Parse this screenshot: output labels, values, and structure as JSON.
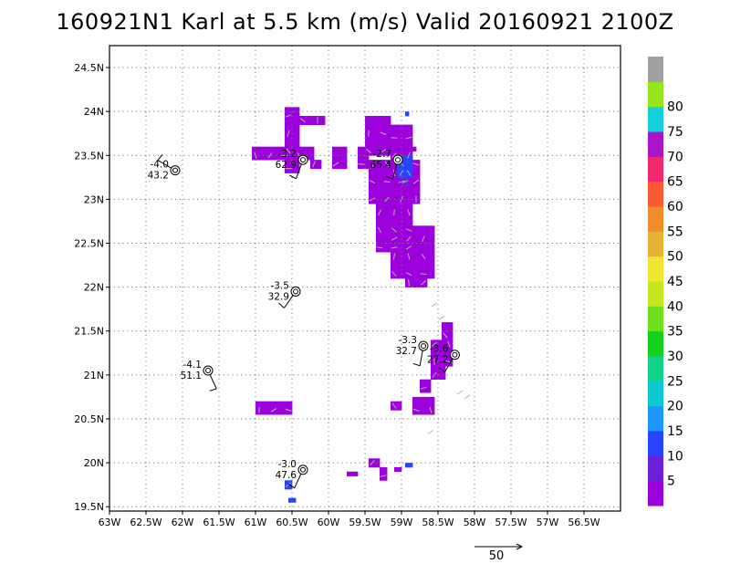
{
  "title": "160921N1 Karl at 5.5 km (m/s) Valid 20160921 2100Z",
  "map": {
    "lon_ticks": [
      "63W",
      "62.5W",
      "62W",
      "61.5W",
      "61W",
      "60.5W",
      "60W",
      "59.5W",
      "59W",
      "58.5W",
      "58W",
      "57.5W",
      "57W",
      "56.5W"
    ],
    "lat_ticks": [
      "24.5N",
      "24N",
      "23.5N",
      "23N",
      "22.5N",
      "22N",
      "21.5N",
      "21N",
      "20.5N",
      "20N",
      "19.5N"
    ],
    "lon_range": [
      -63,
      -56
    ],
    "lat_range": [
      19.45,
      24.75
    ],
    "grid": "dotted",
    "land_color": "#ffffff"
  },
  "colorbar": {
    "labels": [
      "5",
      "10",
      "15",
      "20",
      "25",
      "30",
      "35",
      "40",
      "45",
      "50",
      "55",
      "60",
      "65",
      "70",
      "75",
      "80"
    ],
    "colors": [
      "#9c00dc",
      "#6a1fd8",
      "#2745ff",
      "#1e96ff",
      "#10c8d0",
      "#14d28c",
      "#12d21e",
      "#6ee01c",
      "#c8e61e",
      "#f0e632",
      "#e6b432",
      "#f08c2c",
      "#fa5a32",
      "#f0286e",
      "#aa14c8",
      "#14d2dc",
      "#96e61e",
      "#a0a0a0"
    ]
  },
  "reference_vector": {
    "label": "50"
  },
  "observations": [
    {
      "lon": -62.1,
      "lat": 23.33,
      "top": "-4.0",
      "bottom": "43.2"
    },
    {
      "lon": -60.35,
      "lat": 23.45,
      "top": "-3.2",
      "bottom": "62.9"
    },
    {
      "lon": -59.05,
      "lat": 23.45,
      "top": "-2.7",
      "bottom": "65.4"
    },
    {
      "lon": -60.45,
      "lat": 21.95,
      "top": "-3.5",
      "bottom": "32.9"
    },
    {
      "lon": -61.65,
      "lat": 21.05,
      "top": "-4.1",
      "bottom": "51.1"
    },
    {
      "lon": -58.7,
      "lat": 21.33,
      "top": "-3.3",
      "bottom": "32.7"
    },
    {
      "lon": -58.27,
      "lat": 21.23,
      "top": "-3.6",
      "bottom": "27.2"
    },
    {
      "lon": -60.35,
      "lat": 19.92,
      "top": "-3.0",
      "bottom": "47.6"
    }
  ],
  "wind_field": {
    "cell_deg": [
      0.1,
      0.1
    ],
    "dominant_color": "#9c00dc",
    "regions": [
      {
        "lon": [
          -60.6,
          -60.4
        ],
        "lat": [
          23.3,
          24.05
        ],
        "color": "#9c00dc"
      },
      {
        "lon": [
          -60.4,
          -60.05
        ],
        "lat": [
          23.85,
          23.95
        ],
        "color": "#9c00dc"
      },
      {
        "lon": [
          -61.05,
          -60.2
        ],
        "lat": [
          23.45,
          23.6
        ],
        "color": "#9c00dc"
      },
      {
        "lon": [
          -60.25,
          -60.1
        ],
        "lat": [
          23.35,
          23.45
        ],
        "color": "#9c00dc"
      },
      {
        "lon": [
          -59.95,
          -59.75
        ],
        "lat": [
          23.35,
          23.6
        ],
        "color": "#9c00dc"
      },
      {
        "lon": [
          -59.6,
          -59.45
        ],
        "lat": [
          23.35,
          23.6
        ],
        "color": "#9c00dc"
      },
      {
        "lon": [
          -59.5,
          -59.15
        ],
        "lat": [
          23.5,
          23.95
        ],
        "color": "#9c00dc"
      },
      {
        "lon": [
          -59.15,
          -58.85
        ],
        "lat": [
          23.25,
          23.85
        ],
        "color": "#9c00dc"
      },
      {
        "lon": [
          -58.9,
          -58.8
        ],
        "lat": [
          23.55,
          23.6
        ],
        "color": "#9c00dc"
      },
      {
        "lon": [
          -59.45,
          -58.75
        ],
        "lat": [
          22.95,
          23.45
        ],
        "color": "#9c00dc"
      },
      {
        "lon": [
          -59.35,
          -58.85
        ],
        "lat": [
          22.4,
          22.95
        ],
        "color": "#9c00dc"
      },
      {
        "lon": [
          -59.15,
          -58.55
        ],
        "lat": [
          22.1,
          22.7
        ],
        "color": "#9c00dc"
      },
      {
        "lon": [
          -58.95,
          -58.65
        ],
        "lat": [
          22.0,
          22.1
        ],
        "color": "#9c00dc"
      },
      {
        "lon": [
          -59.05,
          -58.85
        ],
        "lat": [
          23.25,
          23.5
        ],
        "color": "#2745ff"
      },
      {
        "lon": [
          -59.0,
          -58.9
        ],
        "lat": [
          23.15,
          23.25
        ],
        "color": "#6a1fd8"
      },
      {
        "lon": [
          -58.95,
          -58.9
        ],
        "lat": [
          23.95,
          24.0
        ],
        "color": "#2745ff"
      },
      {
        "lon": [
          -58.45,
          -58.3
        ],
        "lat": [
          21.4,
          21.6
        ],
        "color": "#9c00dc"
      },
      {
        "lon": [
          -58.6,
          -58.3
        ],
        "lat": [
          21.1,
          21.4
        ],
        "color": "#9c00dc"
      },
      {
        "lon": [
          -58.6,
          -58.4
        ],
        "lat": [
          20.95,
          21.1
        ],
        "color": "#9c00dc"
      },
      {
        "lon": [
          -58.75,
          -58.6
        ],
        "lat": [
          20.8,
          20.95
        ],
        "color": "#9c00dc"
      },
      {
        "lon": [
          -58.85,
          -58.55
        ],
        "lat": [
          20.55,
          20.75
        ],
        "color": "#9c00dc"
      },
      {
        "lon": [
          -59.15,
          -59.0
        ],
        "lat": [
          20.6,
          20.7
        ],
        "color": "#9c00dc"
      },
      {
        "lon": [
          -61.0,
          -60.5
        ],
        "lat": [
          20.55,
          20.7
        ],
        "color": "#9c00dc"
      },
      {
        "lon": [
          -59.45,
          -59.3
        ],
        "lat": [
          19.95,
          20.05
        ],
        "color": "#9c00dc"
      },
      {
        "lon": [
          -59.3,
          -59.2
        ],
        "lat": [
          19.8,
          19.95
        ],
        "color": "#9c00dc"
      },
      {
        "lon": [
          -59.75,
          -59.6
        ],
        "lat": [
          19.85,
          19.9
        ],
        "color": "#9c00dc"
      },
      {
        "lon": [
          -59.1,
          -59.0
        ],
        "lat": [
          19.9,
          19.95
        ],
        "color": "#9c00dc"
      },
      {
        "lon": [
          -58.95,
          -58.85
        ],
        "lat": [
          19.95,
          20.0
        ],
        "color": "#2745ff"
      },
      {
        "lon": [
          -60.6,
          -60.5
        ],
        "lat": [
          19.7,
          19.8
        ],
        "color": "#2745ff"
      },
      {
        "lon": [
          -60.55,
          -60.45
        ],
        "lat": [
          19.55,
          19.6
        ],
        "color": "#2745ff"
      }
    ]
  }
}
